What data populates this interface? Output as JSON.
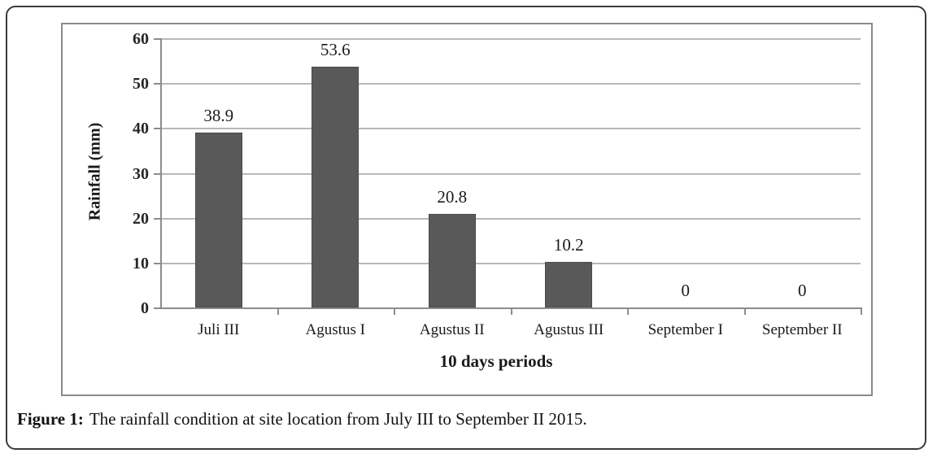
{
  "figure": {
    "caption_label": "Figure 1:",
    "caption_text": "The rainfall condition at site location from July III to September II 2015."
  },
  "chart_data": {
    "type": "bar",
    "title": "",
    "categories": [
      "Juli III",
      "Agustus I",
      "Agustus II",
      "Agustus III",
      "September I",
      "September II"
    ],
    "values": [
      38.9,
      53.6,
      20.8,
      10.2,
      0,
      0
    ],
    "value_labels": [
      "38.9",
      "53.6",
      "20.8",
      "10.2",
      "0",
      "0"
    ],
    "xlabel": "10 days periods",
    "ylabel": "Rainfall (mm)",
    "ylim": [
      0,
      60
    ],
    "yticks": [
      0,
      10,
      20,
      30,
      40,
      50,
      60
    ],
    "grid": true,
    "legend": "none",
    "colors": {
      "bar": "#595959",
      "bar_border": "#4a4a4a",
      "gridline": "#b8b8b8",
      "axis": "#8c8c8c",
      "text": "#1a1a1a",
      "panel_border": "#8a8a8a",
      "card_border": "#3a3a3a"
    }
  }
}
